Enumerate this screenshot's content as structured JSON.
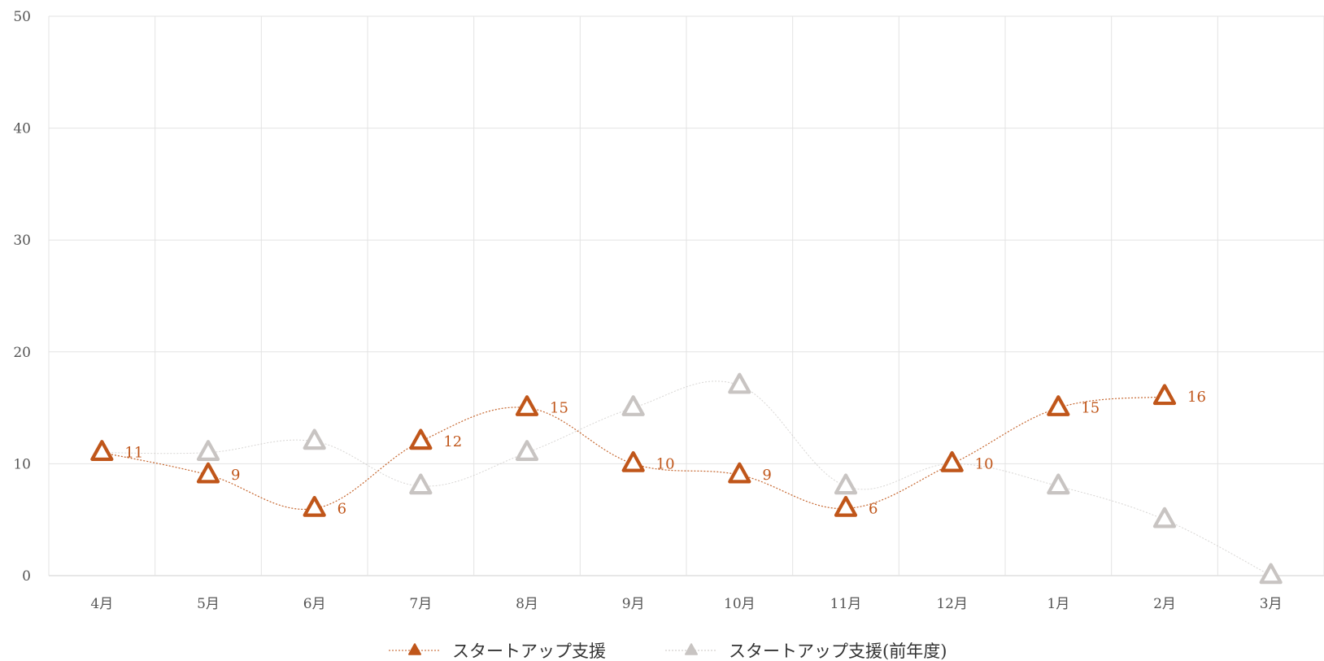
{
  "chart_data": {
    "type": "line",
    "title": "",
    "xlabel": "",
    "ylabel": "",
    "ylim": [
      0,
      50
    ],
    "yticks": [
      "0",
      "10",
      "20",
      "30",
      "40",
      "50"
    ],
    "categories": [
      "4月",
      "5月",
      "6月",
      "7月",
      "8月",
      "9月",
      "10月",
      "11月",
      "12月",
      "1月",
      "2月",
      "3月"
    ],
    "grid": true,
    "legend_position": "bottom-center",
    "series": [
      {
        "name": "スタートアップ支援",
        "color": "#c0561a",
        "marker": "triangle",
        "smooth": true,
        "show_data_labels": true,
        "values": [
          11,
          9,
          6,
          12,
          15,
          10,
          9,
          6,
          10,
          15,
          16,
          null
        ]
      },
      {
        "name": "スタートアップ支援(前年度)",
        "color": "#c8c4c2",
        "marker": "triangle",
        "smooth": true,
        "show_data_labels": false,
        "values": [
          11,
          11,
          12,
          8,
          11,
          15,
          17,
          8,
          10,
          8,
          5,
          0
        ]
      }
    ]
  }
}
